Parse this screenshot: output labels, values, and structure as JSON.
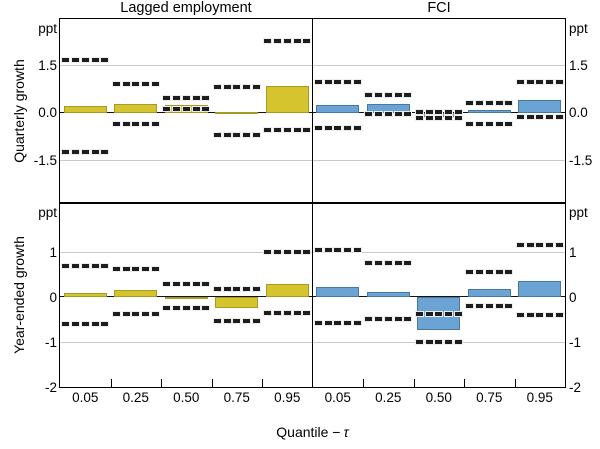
{
  "chart_data": {
    "type": "bar",
    "unit": "ppt",
    "xlabel_prefix": "Quantile −",
    "xlabel_symbol": "τ",
    "categories": [
      "0.05",
      "0.25",
      "0.50",
      "0.75",
      "0.95"
    ],
    "columns": [
      {
        "label": "Lagged employment",
        "bar_fill": "#d6c42f",
        "bar_border": "#a59a22"
      },
      {
        "label": "FCI",
        "bar_fill": "#6ba4d4",
        "bar_border": "#47789f"
      }
    ],
    "rows": [
      {
        "title": "Quarterly growth",
        "ylim": [
          -2.85,
          2.95
        ],
        "yticks": [
          {
            "v": 1.5,
            "label": "1.5"
          },
          {
            "v": 0,
            "label": "0.0"
          },
          {
            "v": -1.5,
            "label": "-1.5"
          }
        ],
        "gridlines": [
          1.5,
          -1.5
        ]
      },
      {
        "title": "Year-ended growth",
        "ylim": [
          -2.0,
          2.09
        ],
        "yticks": [
          {
            "v": 1,
            "label": "1"
          },
          {
            "v": 0,
            "label": "0"
          },
          {
            "v": -1,
            "label": "-1"
          },
          {
            "v": -2,
            "label": "-2"
          }
        ],
        "gridlines": [
          1,
          -1
        ]
      }
    ],
    "legend": "bars = coefficient estimate, dashed lines = confidence interval bounds",
    "panels": [
      {
        "row": 0,
        "col": 0,
        "bars": [
          0.2,
          0.27,
          0.25,
          0.03,
          0.85
        ],
        "ci_upper": [
          1.65,
          0.9,
          0.47,
          0.8,
          2.25
        ],
        "ci_lower": [
          -1.25,
          -0.35,
          0.1,
          -0.7,
          -0.55
        ]
      },
      {
        "row": 0,
        "col": 1,
        "bars": [
          0.25,
          0.27,
          -0.15,
          0.08,
          0.4
        ],
        "ci_upper": [
          0.95,
          0.55,
          0.02,
          0.3,
          0.95
        ],
        "ci_lower": [
          -0.5,
          -0.05,
          -0.16,
          -0.35,
          -0.15
        ]
      },
      {
        "row": 1,
        "col": 0,
        "bars": [
          0.08,
          0.15,
          -0.02,
          -0.25,
          0.3
        ],
        "ci_upper": [
          0.7,
          0.63,
          0.28,
          0.18,
          1.0
        ],
        "ci_lower": [
          -0.6,
          -0.37,
          -0.25,
          -0.53,
          -0.35
        ]
      },
      {
        "row": 1,
        "col": 1,
        "bars": [
          0.23,
          0.12,
          -0.73,
          0.17,
          0.36
        ],
        "ci_upper": [
          1.05,
          0.75,
          -0.37,
          0.55,
          1.15
        ],
        "ci_lower": [
          -0.58,
          -0.48,
          -1.0,
          -0.2,
          -0.4
        ]
      }
    ],
    "style": {
      "dash_color": "#1d1d1d",
      "gridline_color": "#c9c9c9"
    }
  }
}
